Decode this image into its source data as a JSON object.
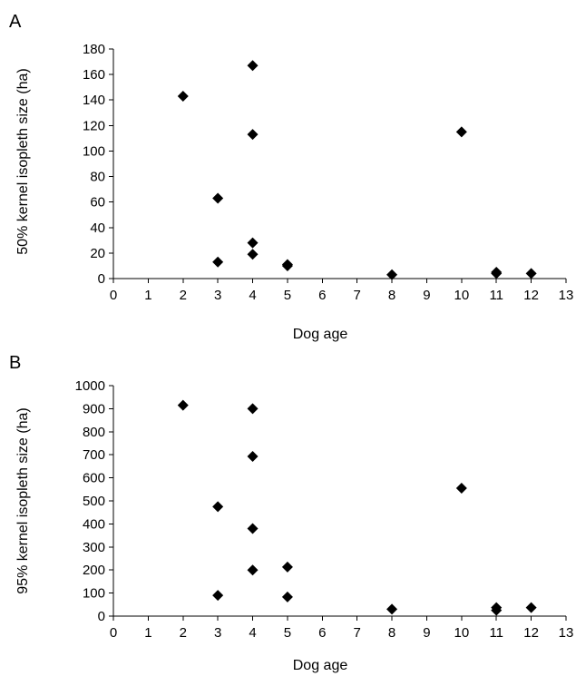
{
  "chart_data": [
    {
      "type": "scatter",
      "panel_label": "A",
      "xlabel": "Dog age",
      "ylabel": "50% kernel isopleth size (ha)",
      "xlim": [
        0,
        13
      ],
      "ylim": [
        0,
        180
      ],
      "x_ticks": [
        0,
        1,
        2,
        3,
        4,
        5,
        6,
        7,
        8,
        9,
        10,
        11,
        12,
        13
      ],
      "y_ticks": [
        0,
        20,
        40,
        60,
        80,
        100,
        120,
        140,
        160,
        180
      ],
      "grid": false,
      "marker": "diamond",
      "marker_color": "#000000",
      "points": [
        {
          "x": 2,
          "y": 143
        },
        {
          "x": 3,
          "y": 63
        },
        {
          "x": 3,
          "y": 13
        },
        {
          "x": 4,
          "y": 167
        },
        {
          "x": 4,
          "y": 113
        },
        {
          "x": 4,
          "y": 28
        },
        {
          "x": 4,
          "y": 19
        },
        {
          "x": 5,
          "y": 11
        },
        {
          "x": 5,
          "y": 10
        },
        {
          "x": 8,
          "y": 3
        },
        {
          "x": 10,
          "y": 115
        },
        {
          "x": 11,
          "y": 5
        },
        {
          "x": 11,
          "y": 4
        },
        {
          "x": 12,
          "y": 4
        }
      ]
    },
    {
      "type": "scatter",
      "panel_label": "B",
      "xlabel": "Dog age",
      "ylabel": "95% kernel isopleth size (ha)",
      "xlim": [
        0,
        13
      ],
      "ylim": [
        0,
        1000
      ],
      "x_ticks": [
        0,
        1,
        2,
        3,
        4,
        5,
        6,
        7,
        8,
        9,
        10,
        11,
        12,
        13
      ],
      "y_ticks": [
        0,
        100,
        200,
        300,
        400,
        500,
        600,
        700,
        800,
        900,
        1000
      ],
      "grid": false,
      "marker": "diamond",
      "marker_color": "#000000",
      "points": [
        {
          "x": 2,
          "y": 915
        },
        {
          "x": 3,
          "y": 475
        },
        {
          "x": 3,
          "y": 90
        },
        {
          "x": 4,
          "y": 900
        },
        {
          "x": 4,
          "y": 693
        },
        {
          "x": 4,
          "y": 380
        },
        {
          "x": 4,
          "y": 200
        },
        {
          "x": 5,
          "y": 213
        },
        {
          "x": 5,
          "y": 83
        },
        {
          "x": 8,
          "y": 30
        },
        {
          "x": 10,
          "y": 555
        },
        {
          "x": 11,
          "y": 37
        },
        {
          "x": 11,
          "y": 25
        },
        {
          "x": 12,
          "y": 37
        }
      ]
    }
  ]
}
